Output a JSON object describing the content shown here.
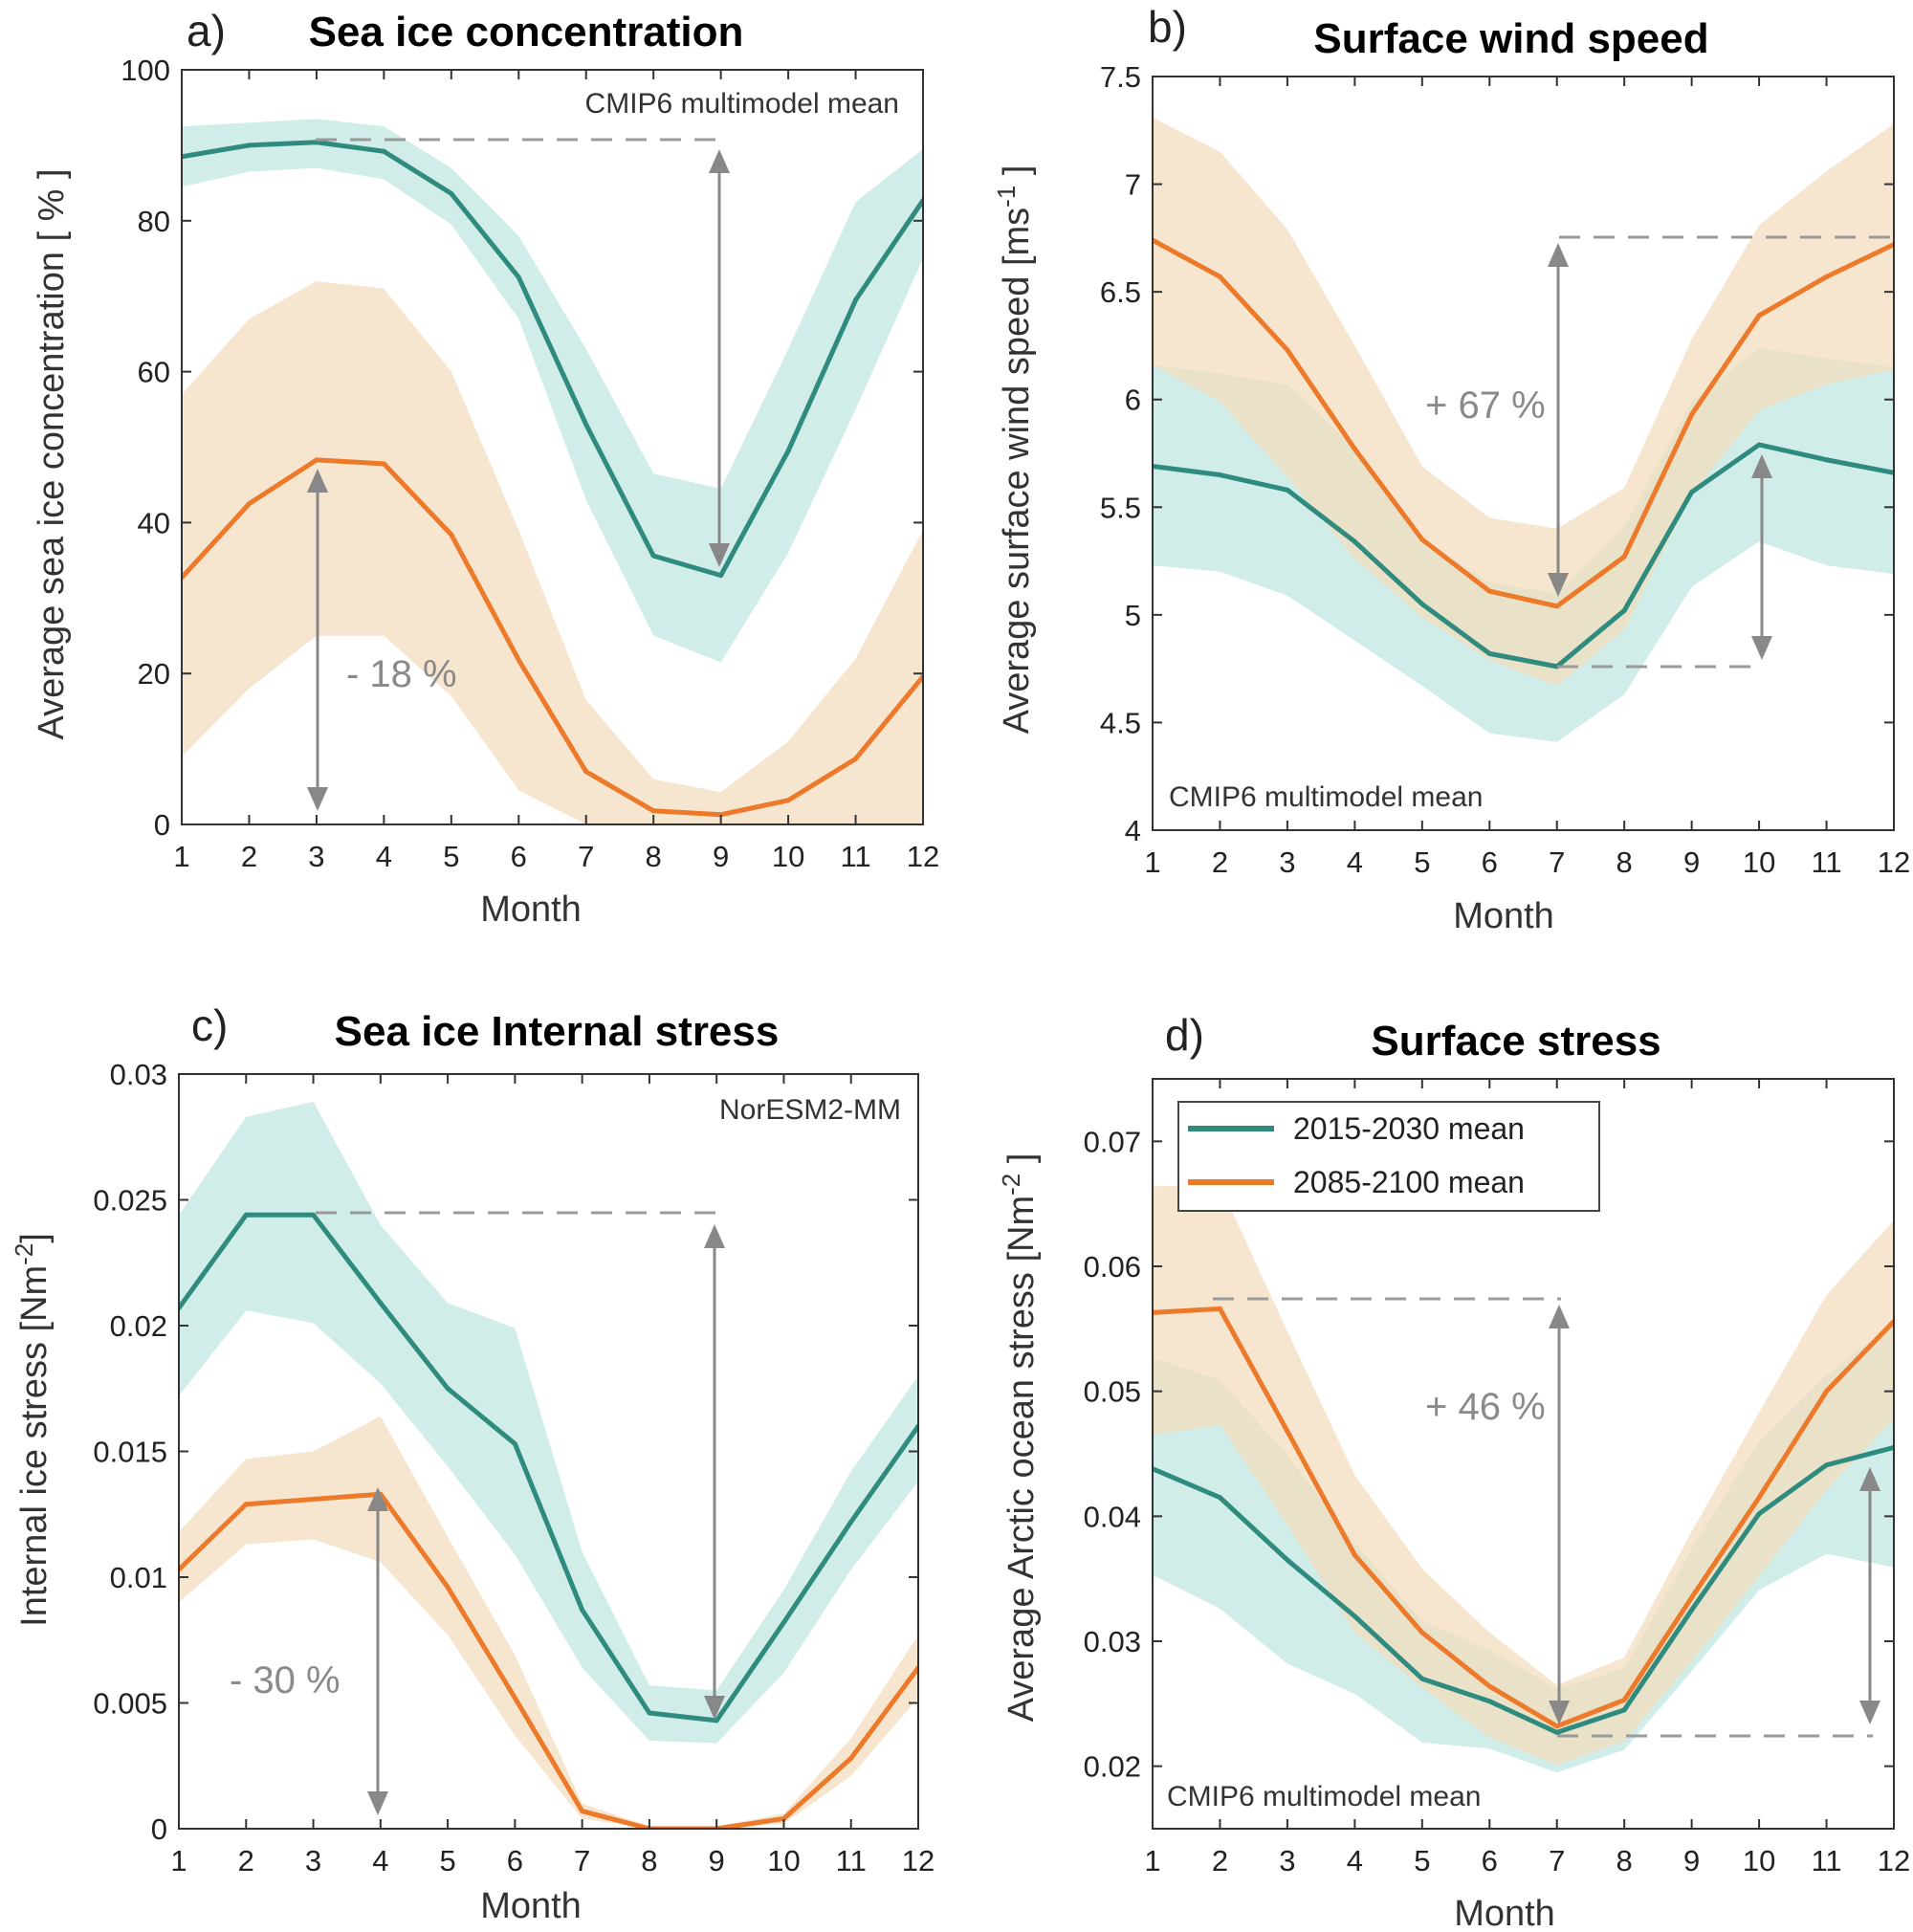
{
  "colors": {
    "teal": "#2e8b7e",
    "teal_band": "#bfe6e0",
    "orange": "#ec7a2a",
    "orange_band": "#f4dcbd",
    "arrow": "#888888",
    "dash": "#9a9a9a"
  },
  "legend": {
    "entries": [
      "2015-2030  mean",
      "2085-2100  mean"
    ]
  },
  "chart_data": [
    {
      "id": "a",
      "type": "line",
      "panel_label": "a)",
      "title": "Sea ice concentration",
      "xlabel": "Month",
      "ylabel": "Average sea ice concentration  [ % ]",
      "note": "CMIP6 multimodel mean",
      "annotation": "- 18 %",
      "x": [
        1,
        2,
        3,
        4,
        5,
        6,
        7,
        8,
        9,
        10,
        11,
        12
      ],
      "xlim": [
        1,
        12
      ],
      "ylim": [
        0,
        100
      ],
      "yticks": [
        0,
        20,
        40,
        60,
        80,
        100
      ],
      "ytick_labels": [
        "0",
        "20",
        "40",
        "60",
        "80",
        "100"
      ],
      "series": [
        {
          "name": "2015-2030  mean",
          "color": "teal",
          "values": [
            88.5,
            90,
            90.4,
            89.2,
            83.6,
            72.5,
            53,
            35.6,
            33,
            49.5,
            69.5,
            82.7
          ],
          "lower": [
            84.5,
            86.5,
            87,
            85.5,
            79.5,
            67,
            43,
            25,
            21.5,
            36,
            55,
            75
          ],
          "upper": [
            92.5,
            93,
            93.5,
            92.5,
            87,
            78,
            63,
            46.5,
            44.5,
            63,
            82.5,
            89.5
          ]
        },
        {
          "name": "2085-2100  mean",
          "color": "orange",
          "values": [
            32.7,
            42.5,
            48.3,
            47.8,
            38.4,
            21.8,
            7,
            1.8,
            1.3,
            3.2,
            8.7,
            19.6
          ],
          "lower": [
            9,
            18,
            25,
            25,
            17,
            4.5,
            0,
            0,
            0,
            0,
            0,
            0
          ],
          "upper": [
            57,
            67,
            72,
            71,
            60,
            39,
            16.5,
            6,
            4.3,
            11,
            22,
            39
          ]
        }
      ]
    },
    {
      "id": "b",
      "type": "line",
      "panel_label": "b)",
      "title": "Surface wind speed",
      "xlabel": "Month",
      "ylabel": "Average surface wind speed  [ms",
      "ylabel_sup": "-1",
      "ylabel_end": " ]",
      "note": "CMIP6 multimodel mean",
      "annotation": "+ 67 %",
      "x": [
        1,
        2,
        3,
        4,
        5,
        6,
        7,
        8,
        9,
        10,
        11,
        12
      ],
      "xlim": [
        1,
        12
      ],
      "ylim": [
        4,
        7.5
      ],
      "yticks": [
        4,
        4.5,
        5,
        5.5,
        6,
        6.5,
        7,
        7.5
      ],
      "ytick_labels": [
        "4",
        "4.5",
        "5",
        "5.5",
        "6",
        "6.5",
        "7",
        "7.5"
      ],
      "series": [
        {
          "name": "2015-2030  mean",
          "color": "teal",
          "values": [
            5.69,
            5.65,
            5.58,
            5.34,
            5.05,
            4.82,
            4.76,
            5.02,
            5.57,
            5.79,
            5.72,
            5.66
          ],
          "lower": [
            5.23,
            5.2,
            5.09,
            4.88,
            4.67,
            4.45,
            4.41,
            4.63,
            5.13,
            5.34,
            5.23,
            5.19
          ],
          "upper": [
            6.16,
            6.12,
            6.07,
            5.78,
            5.36,
            5.15,
            5.1,
            5.41,
            5.99,
            6.24,
            6.19,
            6.15
          ]
        },
        {
          "name": "2085-2100  mean",
          "color": "orange",
          "values": [
            6.74,
            6.57,
            6.23,
            5.77,
            5.35,
            5.11,
            5.04,
            5.27,
            5.93,
            6.39,
            6.57,
            6.72
          ],
          "lower": [
            6.16,
            5.99,
            5.64,
            5.26,
            4.99,
            4.79,
            4.67,
            4.93,
            5.56,
            5.95,
            6.07,
            6.14
          ],
          "upper": [
            7.31,
            7.15,
            6.79,
            6.25,
            5.69,
            5.45,
            5.4,
            5.59,
            6.28,
            6.81,
            7.06,
            7.28
          ]
        }
      ]
    },
    {
      "id": "c",
      "type": "line",
      "panel_label": "c)",
      "title": "Sea ice Internal stress",
      "xlabel": "Month",
      "ylabel": "Internal ice stress  [Nm",
      "ylabel_sup": "-2",
      "ylabel_end": "]",
      "note": "NorESM2-MM",
      "annotation": "- 30 %",
      "x": [
        1,
        2,
        3,
        4,
        5,
        6,
        7,
        8,
        9,
        10,
        11,
        12
      ],
      "xlim": [
        1,
        12
      ],
      "ylim": [
        0,
        0.03
      ],
      "yticks": [
        0,
        0.005,
        0.01,
        0.015,
        0.02,
        0.025,
        0.03
      ],
      "ytick_labels": [
        "0",
        "0.005",
        "0.01",
        "0.015",
        "0.02",
        "0.025",
        "0.03"
      ],
      "series": [
        {
          "name": "2015-2030  mean",
          "color": "teal",
          "values": [
            0.0207,
            0.0244,
            0.0244,
            0.0209,
            0.0175,
            0.0153,
            0.0087,
            0.0046,
            0.0043,
            0.0082,
            0.0122,
            0.016
          ],
          "lower": [
            0.0172,
            0.0206,
            0.0201,
            0.0177,
            0.0144,
            0.0109,
            0.0064,
            0.0035,
            0.0034,
            0.0062,
            0.0103,
            0.0138
          ],
          "upper": [
            0.0244,
            0.0283,
            0.0289,
            0.024,
            0.0209,
            0.0199,
            0.011,
            0.0057,
            0.0055,
            0.0095,
            0.0142,
            0.018
          ]
        },
        {
          "name": "2085-2100  mean",
          "color": "orange",
          "values": [
            0.0103,
            0.0129,
            0.0131,
            0.0133,
            0.0096,
            0.0052,
            0.0007,
            0.0,
            0.0,
            0.0004,
            0.0028,
            0.0064
          ],
          "lower": [
            0.009,
            0.0113,
            0.0115,
            0.0106,
            0.0077,
            0.0037,
            0.0004,
            0.0,
            0.0,
            0.0002,
            0.0021,
            0.0052
          ],
          "upper": [
            0.0118,
            0.0147,
            0.015,
            0.0164,
            0.0116,
            0.0069,
            0.001,
            0.0001,
            0.0001,
            0.0006,
            0.0036,
            0.0077
          ]
        }
      ]
    },
    {
      "id": "d",
      "type": "line",
      "panel_label": "d)",
      "title": "Surface stress",
      "xlabel": "Month",
      "ylabel": "Average Arctic ocean stress  [Nm",
      "ylabel_sup": "-2",
      "ylabel_end": " ]",
      "note": "CMIP6 multimodel mean",
      "annotation": "+ 46 %",
      "x": [
        1,
        2,
        3,
        4,
        5,
        6,
        7,
        8,
        9,
        10,
        11,
        12
      ],
      "xlim": [
        1,
        12
      ],
      "ylim": [
        0.015,
        0.075
      ],
      "yticks": [
        0.02,
        0.03,
        0.04,
        0.05,
        0.06,
        0.07
      ],
      "ytick_labels": [
        "0.02",
        "0.03",
        "0.04",
        "0.05",
        "0.06",
        "0.07"
      ],
      "series": [
        {
          "name": "2015-2030  mean",
          "color": "teal",
          "values": [
            0.0438,
            0.0415,
            0.0365,
            0.032,
            0.027,
            0.0252,
            0.0227,
            0.0245,
            0.0325,
            0.0402,
            0.0441,
            0.0455
          ],
          "lower": [
            0.0353,
            0.0326,
            0.0282,
            0.0258,
            0.0219,
            0.0214,
            0.0195,
            0.0213,
            0.0276,
            0.0341,
            0.037,
            0.0359
          ],
          "upper": [
            0.0527,
            0.0509,
            0.0449,
            0.0379,
            0.0316,
            0.0293,
            0.0262,
            0.0278,
            0.0374,
            0.046,
            0.0513,
            0.0555
          ]
        },
        {
          "name": "2085-2100  mean",
          "color": "orange",
          "values": [
            0.0563,
            0.0566,
            0.0468,
            0.0369,
            0.0307,
            0.0264,
            0.0232,
            0.0253,
            0.0335,
            0.0415,
            0.05,
            0.0556
          ],
          "lower": [
            0.0465,
            0.0473,
            0.0393,
            0.0307,
            0.0263,
            0.0223,
            0.0201,
            0.022,
            0.0284,
            0.0352,
            0.0421,
            0.0478
          ],
          "upper": [
            0.0664,
            0.0665,
            0.0548,
            0.0433,
            0.0358,
            0.0307,
            0.0265,
            0.0287,
            0.0388,
            0.0483,
            0.0577,
            0.0637
          ]
        }
      ]
    }
  ]
}
